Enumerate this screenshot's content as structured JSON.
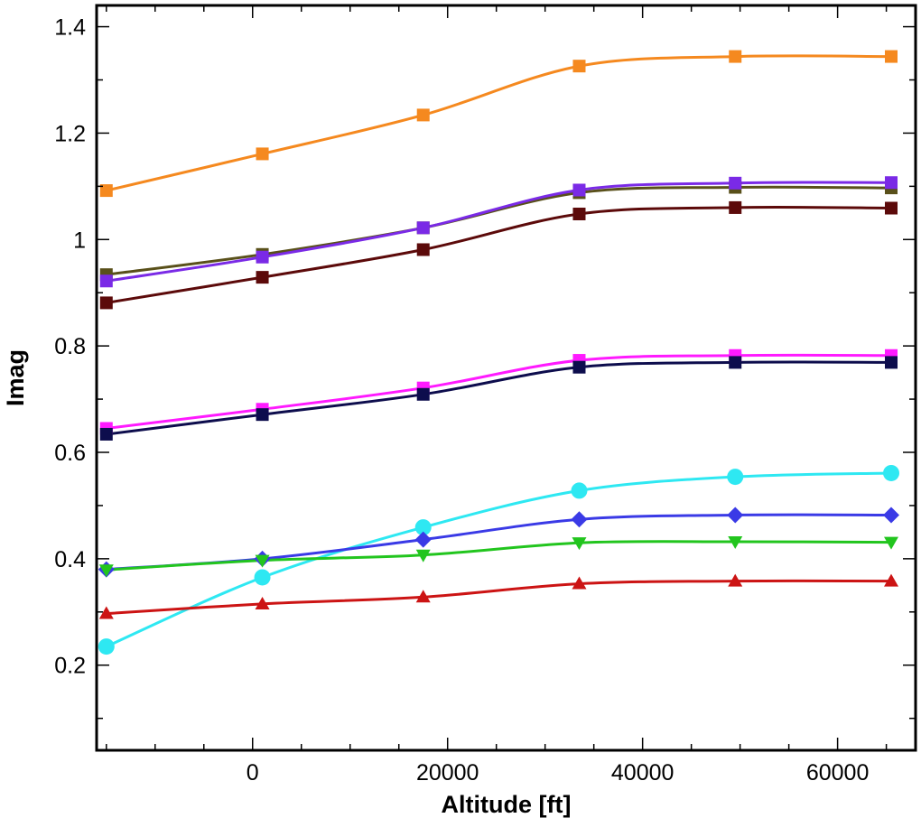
{
  "chart_data": {
    "type": "line",
    "title": "",
    "xlabel": "Altitude [ft]",
    "ylabel": "Imag",
    "xlim": [
      -16000,
      68000
    ],
    "ylim": [
      0.04,
      1.44
    ],
    "x_ticks": [
      0,
      20000,
      40000,
      60000
    ],
    "y_ticks": [
      0.2,
      0.4,
      0.6,
      0.8,
      1,
      1.2,
      1.4
    ],
    "x_tick_labels": [
      "0",
      "20000",
      "40000",
      "60000"
    ],
    "y_tick_labels": [
      "0.2",
      "0.4",
      "0.6",
      "0.8",
      "1",
      "1.2",
      "1.4"
    ],
    "grid": false,
    "series": [
      {
        "color": "#f5891f",
        "marker": "square",
        "x": [
          -15000,
          1000,
          17500,
          33500,
          49500,
          65500
        ],
        "y": [
          1.092,
          1.161,
          1.234,
          1.326,
          1.344,
          1.344
        ]
      },
      {
        "color": "#59501a",
        "marker": "square",
        "x": [
          -15000,
          1000,
          17500,
          33500,
          49500,
          65500
        ],
        "y": [
          0.934,
          0.972,
          1.022,
          1.088,
          1.098,
          1.097
        ]
      },
      {
        "color": "#7a2ae6",
        "marker": "square",
        "x": [
          -15000,
          1000,
          17500,
          33500,
          49500,
          65500
        ],
        "y": [
          0.922,
          0.967,
          1.022,
          1.093,
          1.106,
          1.107
        ]
      },
      {
        "color": "#5c0a0a",
        "marker": "square",
        "x": [
          -15000,
          1000,
          17500,
          33500,
          49500,
          65500
        ],
        "y": [
          0.881,
          0.929,
          0.981,
          1.048,
          1.06,
          1.059
        ]
      },
      {
        "color": "#ff1aff",
        "marker": "square",
        "x": [
          -15000,
          1000,
          17500,
          33500,
          49500,
          65500
        ],
        "y": [
          0.645,
          0.681,
          0.721,
          0.773,
          0.782,
          0.782
        ]
      },
      {
        "color": "#0d0d4d",
        "marker": "square",
        "x": [
          -15000,
          1000,
          17500,
          33500,
          49500,
          65500
        ],
        "y": [
          0.634,
          0.671,
          0.709,
          0.76,
          0.769,
          0.769
        ]
      },
      {
        "color": "#2ee8f2",
        "marker": "circle",
        "x": [
          -15000,
          1000,
          17500,
          33500,
          49500,
          65500
        ],
        "y": [
          0.235,
          0.365,
          0.459,
          0.528,
          0.554,
          0.561
        ]
      },
      {
        "color": "#3a3ae6",
        "marker": "diamond",
        "x": [
          -15000,
          1000,
          17500,
          33500,
          49500,
          65500
        ],
        "y": [
          0.38,
          0.4,
          0.436,
          0.474,
          0.482,
          0.482
        ]
      },
      {
        "color": "#22c51e",
        "marker": "triangle-down",
        "x": [
          -15000,
          1000,
          17500,
          33500,
          49500,
          65500
        ],
        "y": [
          0.379,
          0.397,
          0.407,
          0.43,
          0.432,
          0.431
        ]
      },
      {
        "color": "#cc1414",
        "marker": "triangle-up",
        "x": [
          -15000,
          1000,
          17500,
          33500,
          49500,
          65500
        ],
        "y": [
          0.297,
          0.315,
          0.328,
          0.353,
          0.358,
          0.358
        ]
      }
    ]
  }
}
